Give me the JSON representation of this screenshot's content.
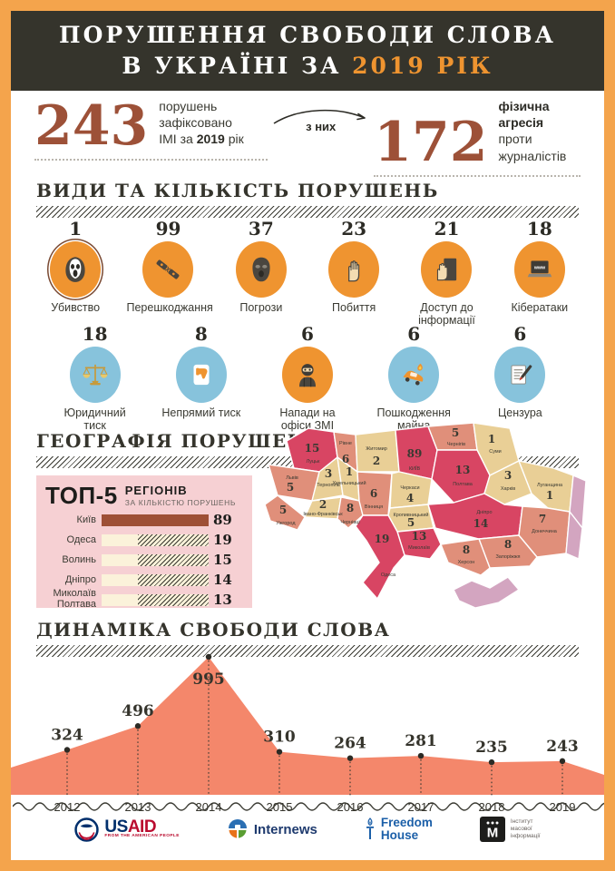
{
  "colors": {
    "frame_orange": "#f4a44c",
    "header_dark": "#35342c",
    "accent_orange": "#ef9430",
    "number_brown": "#9d5138",
    "circle_orange": "#ef9430",
    "circle_blue": "#87c3dc",
    "chart_salmon": "#f4876b",
    "map_crimson": "#d84563",
    "map_salmon": "#e08f7a",
    "map_tan": "#e9cf96",
    "map_mauve": "#d3a5c0",
    "panel_pink": "#f6d0d3",
    "bar_brown": "#9e5036",
    "bar_cream": "#fbf2da",
    "ink": "#35342c"
  },
  "header": {
    "title_line1": "ПОРУШЕННЯ СВОБОДИ СЛОВА",
    "title_line2_prefix": "В УКРАЇНІ ЗА ",
    "title_line2_accent": "2019 РІК"
  },
  "summary": {
    "total": {
      "value": "243",
      "cap1": "порушень зафіксовано",
      "cap2a": "ІМІ за ",
      "cap2b": "2019",
      "cap2c": " рік"
    },
    "link_label": "з них",
    "physical": {
      "value": "172",
      "cap1": "фізична агресія",
      "cap2": "проти журналістів"
    }
  },
  "violations": {
    "section_title": "ВИДИ ТА КІЛЬКІСТЬ ПОРУШЕНЬ",
    "row1": [
      {
        "count": "1",
        "label": "Убивство",
        "icon": "scream-mask"
      },
      {
        "count": "99",
        "label": "Перешкоджання",
        "icon": "broken-camera"
      },
      {
        "count": "37",
        "label": "Погрози",
        "icon": "balaclava"
      },
      {
        "count": "23",
        "label": "Побиття",
        "icon": "fist"
      },
      {
        "count": "21",
        "label": "Доступ до інформації",
        "icon": "hand-on-door"
      },
      {
        "count": "18",
        "label": "Кібератаки",
        "icon": "laptop-www"
      }
    ],
    "row2": [
      {
        "count": "18",
        "label": "Юридичний тиск",
        "icon": "scales"
      },
      {
        "count": "8",
        "label": "Непрямий тиск",
        "icon": "thumb-down"
      },
      {
        "count": "6",
        "label": "Напади на офіси ЗМІ",
        "icon": "masked-attacker"
      },
      {
        "count": "6",
        "label": "Пошкодження майна",
        "icon": "burning-car"
      },
      {
        "count": "6",
        "label": "Цензура",
        "icon": "censored-pen"
      }
    ]
  },
  "geography": {
    "section_title": "ГЕОГРАФІЯ ПОРУШЕНЬ",
    "top5": {
      "title": "ТОП-5",
      "subtitle1": "РЕГІОНІВ",
      "subtitle2": "ЗА КІЛЬКІСТЮ ПОРУШЕНЬ",
      "items": [
        {
          "region": "Київ",
          "value": "89"
        },
        {
          "region": "Одеса",
          "value": "19"
        },
        {
          "region": "Волинь",
          "value": "15"
        },
        {
          "region": "Дніпро",
          "value": "14"
        },
        {
          "region": "Миколаїв Полтава",
          "value": "13"
        }
      ]
    },
    "map_regions": [
      {
        "name": "Луцьк",
        "value": "15"
      },
      {
        "name": "Рівне",
        "value": "6"
      },
      {
        "name": "Житомир",
        "value": "2"
      },
      {
        "name": "КИЇВ",
        "value": "89"
      },
      {
        "name": "Чернігів",
        "value": "5"
      },
      {
        "name": "Суми",
        "value": "1"
      },
      {
        "name": "Львів",
        "value": "5"
      },
      {
        "name": "Тернопіль",
        "value": "3"
      },
      {
        "name": "Хмельницький",
        "value": "1"
      },
      {
        "name": "Івано-Франківськ",
        "value": "2"
      },
      {
        "name": "Ужгород",
        "value": "5"
      },
      {
        "name": "Чернівці",
        "value": "8"
      },
      {
        "name": "Вінниця",
        "value": "6"
      },
      {
        "name": "Черкаси",
        "value": "4"
      },
      {
        "name": "Полтава",
        "value": "13"
      },
      {
        "name": "Харків",
        "value": "3"
      },
      {
        "name": "Луганщина",
        "value": "1"
      },
      {
        "name": "Кропивницький",
        "value": "5"
      },
      {
        "name": "Дніпро",
        "value": "14"
      },
      {
        "name": "Донеччина",
        "value": "7"
      },
      {
        "name": "Запоріжжя",
        "value": "8"
      },
      {
        "name": "Херсон",
        "value": "8"
      },
      {
        "name": "Миколаїв",
        "value": "13"
      },
      {
        "name": "Одеса",
        "value": "19"
      }
    ]
  },
  "dynamics": {
    "section_title": "ДИНАМІКА СВОБОДИ СЛОВА"
  },
  "chart_data": [
    {
      "type": "bar",
      "title": "ВИДИ ТА КІЛЬКІСТЬ ПОРУШЕНЬ",
      "categories": [
        "Убивство",
        "Перешкоджання",
        "Погрози",
        "Побиття",
        "Доступ до інформації",
        "Кібератаки",
        "Юридичний тиск",
        "Непрямий тиск",
        "Напади на офіси ЗМІ",
        "Пошкодження майна",
        "Цензура"
      ],
      "values": [
        1,
        99,
        37,
        23,
        21,
        18,
        18,
        8,
        6,
        6,
        6
      ]
    },
    {
      "type": "bar",
      "title": "ТОП-5 РЕГІОНІВ ЗА КІЛЬКІСТЮ ПОРУШЕНЬ",
      "categories": [
        "Київ",
        "Одеса",
        "Волинь",
        "Дніпро",
        "Миколаїв Полтава"
      ],
      "values": [
        89,
        19,
        15,
        14,
        13
      ]
    },
    {
      "type": "area",
      "title": "ДИНАМІКА СВОБОДИ СЛОВА",
      "x": [
        "2012",
        "2013",
        "2014",
        "2015",
        "2016",
        "2017",
        "2018",
        "2019"
      ],
      "values": [
        324,
        496,
        995,
        310,
        264,
        281,
        235,
        243
      ],
      "ylim": [
        0,
        995
      ],
      "grid": false,
      "legend": "none"
    },
    {
      "type": "map",
      "title": "ГЕОГРАФІЯ ПОРУШЕНЬ",
      "regions": [
        [
          "Луцьк",
          15
        ],
        [
          "Рівне",
          6
        ],
        [
          "Житомир",
          2
        ],
        [
          "Київ",
          89
        ],
        [
          "Чернігів",
          5
        ],
        [
          "Суми",
          1
        ],
        [
          "Львів",
          5
        ],
        [
          "Тернопіль",
          3
        ],
        [
          "Хмельницький",
          1
        ],
        [
          "Івано-Франківськ",
          2
        ],
        [
          "Ужгород",
          5
        ],
        [
          "Чернівці",
          8
        ],
        [
          "Вінниця",
          6
        ],
        [
          "Черкаси",
          4
        ],
        [
          "Полтава",
          13
        ],
        [
          "Харків",
          3
        ],
        [
          "Луганщина",
          1
        ],
        [
          "Кропивницький",
          5
        ],
        [
          "Дніпро",
          14
        ],
        [
          "Донеччина",
          7
        ],
        [
          "Запоріжжя",
          8
        ],
        [
          "Херсон",
          8
        ],
        [
          "Миколаїв",
          13
        ],
        [
          "Одеса",
          19
        ]
      ]
    }
  ],
  "footer": {
    "usaid_us": "US",
    "usaid_aid": "AID",
    "usaid_tagline": "FROM THE AMERICAN PEOPLE",
    "internews": "Internews",
    "freedom_line1": "Freedom",
    "freedom_line2": "House",
    "imi_mark": "М",
    "imi_line1": "Інститут",
    "imi_line2": "масової",
    "imi_line3": "інформації"
  }
}
